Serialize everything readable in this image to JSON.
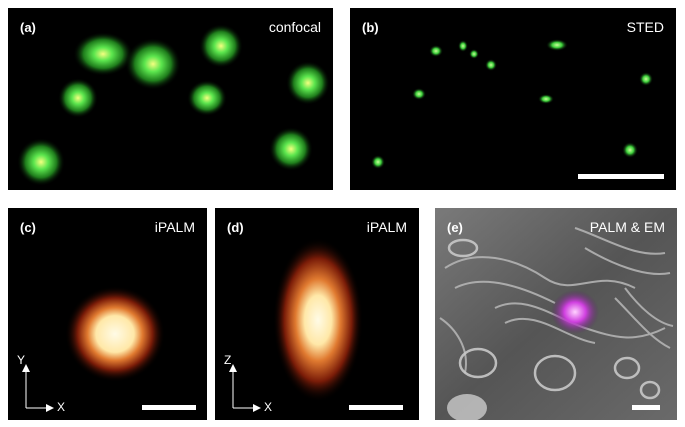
{
  "panels": [
    {
      "label": "(a)",
      "title": "confocal"
    },
    {
      "label": "(b)",
      "title": "STED"
    },
    {
      "label": "(c)",
      "title": "iPALM",
      "axis_v": "Y",
      "axis_h": "X"
    },
    {
      "label": "(d)",
      "title": "iPALM",
      "axis_v": "Z",
      "axis_h": "X"
    },
    {
      "label": "(e)",
      "title": "PALM & EM"
    }
  ],
  "colors": {
    "confocal_spot": "#4fe04a",
    "sted_spot": "#3ccf3a",
    "ipalm_core": "#fff6d8",
    "ipalm_glow": "#c2451a",
    "palm_overlay": "#d040e0",
    "em_background": "#6a6a6a"
  }
}
